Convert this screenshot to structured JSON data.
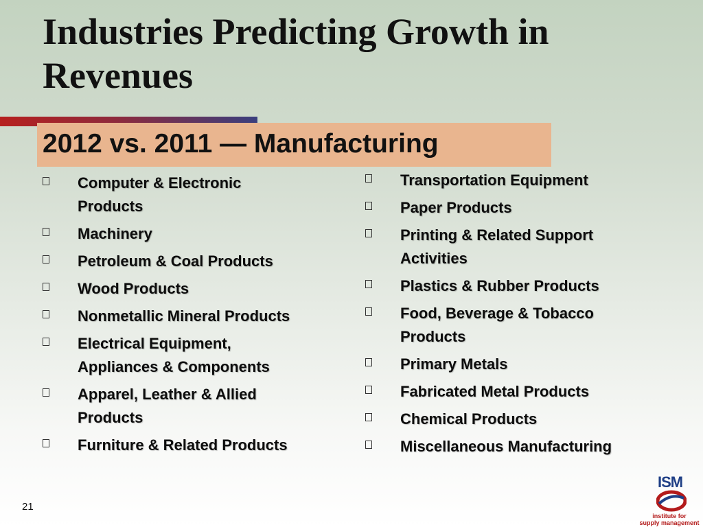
{
  "slide": {
    "title_line1": "Industries Predicting Growth in",
    "title_line2": "Revenues",
    "subtitle": "2012 vs. 2011 — Manufacturing",
    "slide_number": "21"
  },
  "left_column": [
    {
      "line1": "Computer & Electronic",
      "line2": "Products"
    },
    {
      "line1": "Machinery",
      "line2": ""
    },
    {
      "line1": "Petroleum & Coal Products",
      "line2": ""
    },
    {
      "line1": "Wood Products",
      "line2": ""
    },
    {
      "line1": "Nonmetallic Mineral Products",
      "line2": ""
    },
    {
      "line1": "Electrical Equipment,",
      "line2": "Appliances & Components"
    },
    {
      "line1": "Apparel, Leather & Allied",
      "line2": "Products"
    },
    {
      "line1": "Furniture & Related Products",
      "line2": ""
    }
  ],
  "right_column": [
    {
      "line1": "Transportation Equipment",
      "line2": ""
    },
    {
      "line1": "Paper Products",
      "line2": ""
    },
    {
      "line1": "Printing & Related Support",
      "line2": "Activities"
    },
    {
      "line1": "Plastics & Rubber Products",
      "line2": ""
    },
    {
      "line1": "Food, Beverage & Tobacco",
      "line2": "Products"
    },
    {
      "line1": "Primary Metals",
      "line2": ""
    },
    {
      "line1": "Fabricated Metal Products",
      "line2": ""
    },
    {
      "line1": "Chemical Products",
      "line2": ""
    },
    {
      "line1": "Miscellaneous Manufacturing",
      "line2": ""
    }
  ],
  "logo": {
    "mark": "ISM",
    "line1": "institute for",
    "line2": "supply management"
  },
  "colors": {
    "title_accent_red": "#b6201e",
    "title_accent_navy": "#3a3f7e",
    "subtitle_box": "#e9b58f",
    "logo_navy": "#1f3f86",
    "logo_red": "#b31b1b"
  },
  "icons": {
    "bullet": "square-bullet-icon",
    "logo": "ism-logo-icon"
  }
}
